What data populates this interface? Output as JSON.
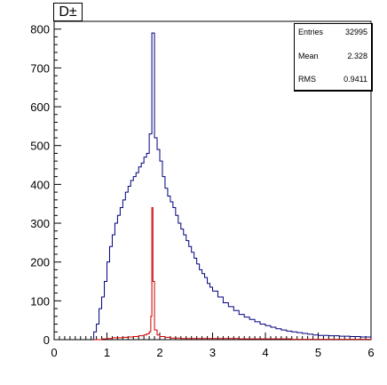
{
  "chart_data": {
    "type": "histogram",
    "title": "D±",
    "xlim": [
      0,
      6
    ],
    "ylim": [
      0,
      820
    ],
    "x_ticks": [
      "0",
      "1",
      "2",
      "3",
      "4",
      "5",
      "6"
    ],
    "y_ticks": [
      "0",
      "100",
      "200",
      "300",
      "400",
      "500",
      "600",
      "700",
      "800"
    ],
    "stats": [
      {
        "label": "Entries",
        "value": "32995"
      },
      {
        "label": "Mean",
        "value": "2.328"
      },
      {
        "label": "RMS",
        "value": "0.9411"
      }
    ],
    "series": [
      {
        "color": "#000080",
        "x": [
          0.75,
          0.8,
          0.85,
          0.9,
          0.95,
          1.0,
          1.05,
          1.1,
          1.15,
          1.2,
          1.25,
          1.3,
          1.35,
          1.4,
          1.45,
          1.5,
          1.55,
          1.6,
          1.65,
          1.7,
          1.75,
          1.8,
          1.85,
          1.9,
          1.95,
          2.0,
          2.05,
          2.1,
          2.15,
          2.2,
          2.25,
          2.3,
          2.35,
          2.4,
          2.45,
          2.5,
          2.55,
          2.6,
          2.65,
          2.7,
          2.75,
          2.8,
          2.85,
          2.9,
          2.95,
          3.0,
          3.1,
          3.2,
          3.3,
          3.4,
          3.5,
          3.6,
          3.7,
          3.8,
          3.9,
          4.0,
          4.1,
          4.2,
          4.3,
          4.4,
          4.5,
          4.6,
          4.7,
          4.8,
          4.9,
          5.0,
          5.2,
          5.4,
          5.6,
          5.8,
          6.0
        ],
        "y": [
          20,
          40,
          80,
          110,
          150,
          200,
          240,
          270,
          300,
          320,
          340,
          360,
          380,
          395,
          410,
          420,
          430,
          445,
          455,
          470,
          480,
          530,
          790,
          520,
          490,
          460,
          420,
          390,
          370,
          355,
          340,
          320,
          300,
          285,
          270,
          255,
          240,
          225,
          210,
          195,
          180,
          170,
          160,
          145,
          135,
          125,
          110,
          95,
          85,
          75,
          65,
          58,
          52,
          46,
          40,
          36,
          32,
          28,
          25,
          22,
          20,
          18,
          16,
          14,
          12,
          11,
          10,
          9,
          8,
          7,
          6
        ]
      },
      {
        "color": "#cc0000",
        "x": [
          0.75,
          0.9,
          1.0,
          1.1,
          1.2,
          1.3,
          1.4,
          1.5,
          1.6,
          1.7,
          1.75,
          1.8,
          1.83,
          1.85,
          1.87,
          1.9,
          1.95,
          2.0,
          2.1,
          2.2,
          2.4,
          2.6,
          2.8,
          3.0,
          3.5,
          4.0,
          4.5,
          5.0,
          5.5,
          6.0
        ],
        "y": [
          0,
          2,
          3,
          5,
          5,
          6,
          7,
          8,
          10,
          12,
          15,
          20,
          60,
          340,
          150,
          25,
          12,
          8,
          6,
          4,
          3,
          3,
          3,
          3,
          2,
          2,
          1,
          1,
          1,
          0
        ]
      }
    ]
  }
}
